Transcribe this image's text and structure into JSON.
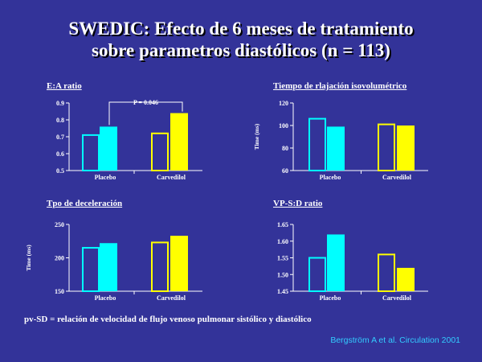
{
  "slide": {
    "title_line1": "SWEDIC: Efecto de 6 meses de tratamiento",
    "title_line2": "sobre parametros diastólicos (n = 113)",
    "footnote": "pv-SD = relación de velocidad de  flujo venoso pulmonar sistólico y diastólico",
    "citation": "Bergström A et al. Circulation 2001"
  },
  "colors": {
    "background": "#333399",
    "placebo_pre": "#00ffff",
    "placebo_post": "#00ffff",
    "carvedilol_pre": "#ffff00",
    "carvedilol_post": "#ffff00"
  },
  "chart_data": [
    {
      "type": "bar",
      "title": "E:A ratio",
      "categories": [
        "Placebo",
        "Carvedilol"
      ],
      "series": [
        {
          "values": [
            0.71,
            0.72
          ],
          "style": "outline"
        },
        {
          "values": [
            0.76,
            0.84
          ],
          "style": "filled"
        }
      ],
      "ylabel": "",
      "ylim": [
        0.5,
        0.9
      ],
      "yticks": [
        0.5,
        0.6,
        0.7,
        0.8,
        0.9
      ],
      "ytick_labels": [
        "0.5",
        "0.6",
        "0.7",
        "0.8",
        "0.9"
      ],
      "annotation": "P = 0.046"
    },
    {
      "type": "bar",
      "title": "Tiempo de rlajación isovolumétrico",
      "categories": [
        "Placebo",
        "Carvedilol"
      ],
      "series": [
        {
          "values": [
            106,
            101
          ],
          "style": "outline"
        },
        {
          "values": [
            99,
            100
          ],
          "style": "filled"
        }
      ],
      "ylabel": "Time (ms)",
      "ylim": [
        60,
        120
      ],
      "yticks": [
        60,
        80,
        100,
        120
      ],
      "ytick_labels": [
        "60",
        "80",
        "100",
        "120"
      ]
    },
    {
      "type": "bar",
      "title": "Tpo de deceleración",
      "categories": [
        "Placebo",
        "Carvedilol"
      ],
      "series": [
        {
          "values": [
            215,
            223
          ],
          "style": "outline"
        },
        {
          "values": [
            222,
            233
          ],
          "style": "filled"
        }
      ],
      "ylabel": "Time (ms)",
      "ylim": [
        150,
        250
      ],
      "yticks": [
        150,
        200,
        250
      ],
      "ytick_labels": [
        "150",
        "200",
        "250"
      ]
    },
    {
      "type": "bar",
      "title": "VP-S:D ratio",
      "categories": [
        "Placebo",
        "Carvedilol"
      ],
      "series": [
        {
          "values": [
            1.55,
            1.56
          ],
          "style": "outline"
        },
        {
          "values": [
            1.62,
            1.52
          ],
          "style": "filled"
        }
      ],
      "ylabel": "",
      "ylim": [
        1.45,
        1.65
      ],
      "yticks": [
        1.45,
        1.5,
        1.55,
        1.6,
        1.65
      ],
      "ytick_labels": [
        "1.45",
        "1.50",
        "1.55",
        "1.60",
        "1.65"
      ]
    }
  ]
}
